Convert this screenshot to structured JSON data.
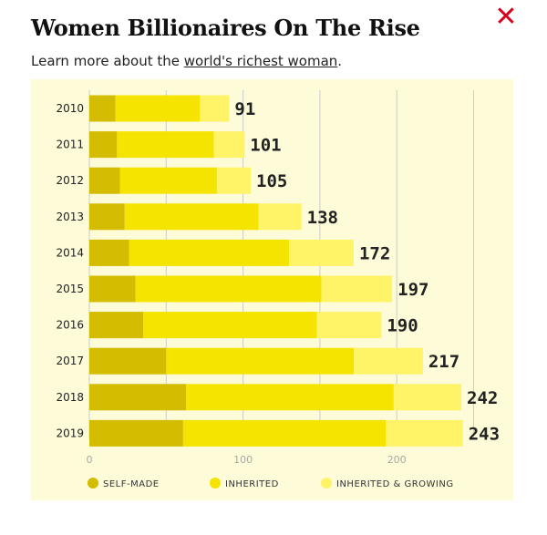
{
  "header": {
    "title": "Women Billionaires On The Rise",
    "subtitle_prefix": "Learn more about the ",
    "subtitle_link": "world's richest woman",
    "subtitle_suffix": ".",
    "close_icon": "close-icon"
  },
  "colors": {
    "self_made": "#d4bc00",
    "inherited": "#f5e300",
    "inherited_growing": "#fff368",
    "panel": "#fdfbd8",
    "grid": "#cccccc",
    "close": "#d6001c"
  },
  "chart_data": {
    "type": "bar",
    "orientation": "horizontal",
    "stacked": true,
    "categories": [
      "2010",
      "2011",
      "2012",
      "2013",
      "2014",
      "2015",
      "2016",
      "2017",
      "2018",
      "2019"
    ],
    "series": [
      {
        "name": "SELF-MADE",
        "values": [
          17,
          18,
          20,
          23,
          26,
          30,
          35,
          50,
          63,
          61
        ]
      },
      {
        "name": "INHERITED",
        "values": [
          55,
          63,
          63,
          87,
          104,
          121,
          113,
          122,
          135,
          132
        ]
      },
      {
        "name": "INHERITED & GROWING",
        "values": [
          19,
          20,
          22,
          28,
          42,
          46,
          42,
          45,
          44,
          50
        ]
      }
    ],
    "totals": [
      91,
      101,
      105,
      138,
      172,
      197,
      190,
      217,
      242,
      243
    ],
    "xticks": [
      "0",
      "100",
      "200"
    ],
    "xlim": [
      0,
      250
    ],
    "grid": true,
    "legend_position": "bottom"
  }
}
